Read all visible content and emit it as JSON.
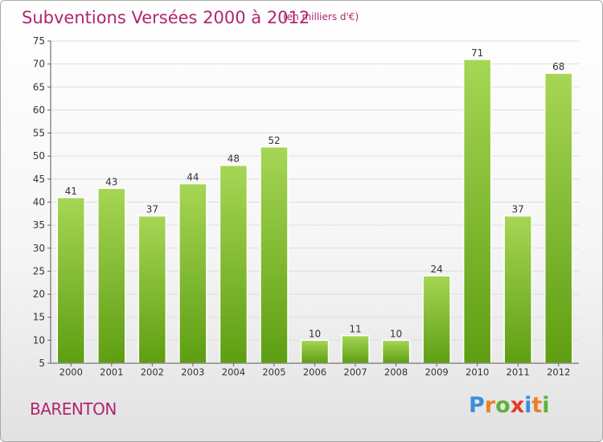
{
  "header": {
    "title": "Subventions Versées 2000 à 2012",
    "subtitle": "(en milliers d'€)"
  },
  "footer": {
    "place": "BARENTON",
    "logo": {
      "text": "Proxiti",
      "letter_colors": [
        "#3a8fd6",
        "#e8822a",
        "#5db33b",
        "#e23c2d",
        "#3a8fd6",
        "#e8822a",
        "#5db33b"
      ]
    }
  },
  "colors": {
    "bar_top": "#a6d655",
    "bar_bottom": "#5e9e12",
    "text": "#333333",
    "accent": "#b0256f"
  },
  "chart_data": {
    "type": "bar",
    "title": "Subventions Versées 2000 à 2012",
    "subtitle": "(en milliers d'€)",
    "categories": [
      "2000",
      "2001",
      "2002",
      "2003",
      "2004",
      "2005",
      "2006",
      "2007",
      "2008",
      "2009",
      "2010",
      "2011",
      "2012"
    ],
    "values": [
      41,
      43,
      37,
      44,
      48,
      52,
      10,
      11,
      10,
      24,
      71,
      37,
      68
    ],
    "ylim": [
      5,
      75
    ],
    "yticks": [
      5,
      10,
      15,
      20,
      25,
      30,
      35,
      40,
      45,
      50,
      55,
      60,
      65,
      70,
      75
    ],
    "grid": true,
    "legend": "none"
  }
}
